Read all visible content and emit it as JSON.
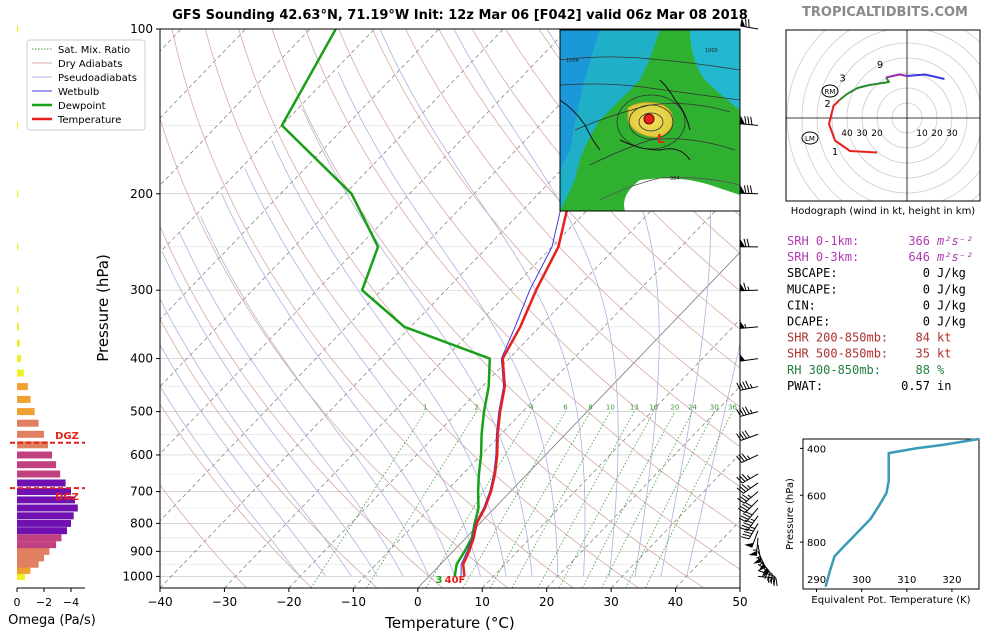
{
  "header": {
    "title": "GFS Sounding 42.63°N, 71.19°W Init: 12z Mar 06 [F042] valid 06z Mar 08 2018",
    "brand": "TROPICALTIDBITS.COM"
  },
  "colors": {
    "temperature": "#e8201a",
    "dewpoint": "#18a018",
    "wetbulb": "#3a3ae0",
    "dry_adiabat": "#d8a8a8",
    "pseudoadiabat": "#b0b0e0",
    "mixing_ratio": "#3a9a3a",
    "purple_index": "#b03ab0",
    "red_index": "#b03030",
    "green_index": "#208040",
    "hodo_green": "#2a8a2a",
    "hodo_purple": "#9a30b0",
    "hodo_blue": "#3a3ae0",
    "theta_e_line": "#3a9ab8",
    "dgz": "#e8201a",
    "omega_colors": [
      "#f0f020",
      "#f0a030",
      "#e08060",
      "#c04080",
      "#7010b0"
    ]
  },
  "chart_data": [
    {
      "id": "skewt",
      "type": "line",
      "title": "GFS Sounding 42.63°N, 71.19°W Init: 12z Mar 06 [F042] valid 06z Mar 08 2018",
      "xlabel": "Temperature (°C)",
      "ylabel": "Pressure (hPa)",
      "xlim": [
        -40,
        50
      ],
      "ylim": [
        1050,
        100
      ],
      "y_scale": "log",
      "x_ticks": [
        -40,
        -30,
        -20,
        -10,
        0,
        10,
        20,
        30,
        40,
        50
      ],
      "x_tick_labels": [
        "−40",
        "−30",
        "−20",
        "−10",
        "0",
        "10",
        "20",
        "30",
        "40",
        "50"
      ],
      "y_ticks": [
        1000,
        900,
        800,
        700,
        600,
        500,
        400,
        300,
        200,
        100
      ],
      "y_tick_labels": [
        "1000",
        "900",
        "800",
        "700",
        "600",
        "500",
        "400",
        "300",
        "200",
        "100"
      ],
      "mixing_ratio_labels": [
        "1",
        "2",
        "4",
        "6",
        "8",
        "10",
        "13",
        "16",
        "20",
        "24",
        "30",
        "36"
      ],
      "legend": {
        "position": "top-left",
        "entries": [
          "Sat. Mix. Ratio",
          "Dry Adiabats",
          "Pseudoadiabats",
          "Wetbulb",
          "Dewpoint",
          "Temperature"
        ]
      },
      "surface_labels": {
        "dewpoint": "3",
        "temperature": "40F"
      },
      "series": [
        {
          "name": "Temperature",
          "points": [
            [
              5.5,
              1000
            ],
            [
              3.5,
              950
            ],
            [
              2.5,
              900
            ],
            [
              1.2,
              850
            ],
            [
              -0.5,
              800
            ],
            [
              -1.5,
              750
            ],
            [
              -3,
              700
            ],
            [
              -5,
              650
            ],
            [
              -7.5,
              600
            ],
            [
              -10.5,
              550
            ],
            [
              -13.5,
              500
            ],
            [
              -16.5,
              450
            ],
            [
              -21,
              400
            ],
            [
              -23,
              350
            ],
            [
              -26,
              300
            ],
            [
              -29,
              250
            ],
            [
              -35,
              200
            ],
            [
              -41,
              150
            ],
            [
              -45,
              100
            ]
          ]
        },
        {
          "name": "Wetbulb",
          "points": [
            [
              5,
              1000
            ],
            [
              3.2,
              950
            ],
            [
              2.2,
              900
            ],
            [
              1,
              850
            ],
            [
              -0.7,
              800
            ],
            [
              -1.7,
              750
            ],
            [
              -3.2,
              700
            ],
            [
              -5.2,
              650
            ],
            [
              -7.7,
              600
            ],
            [
              -10.7,
              550
            ],
            [
              -13.7,
              500
            ],
            [
              -16.7,
              450
            ],
            [
              -21.2,
              400
            ],
            [
              -23.8,
              350
            ],
            [
              -27,
              300
            ],
            [
              -30,
              250
            ],
            [
              -36,
              200
            ],
            [
              -42,
              150
            ],
            [
              -46.5,
              100
            ]
          ]
        },
        {
          "name": "Dewpoint",
          "points": [
            [
              4,
              1000
            ],
            [
              2.5,
              950
            ],
            [
              1.8,
              900
            ],
            [
              0.9,
              850
            ],
            [
              -0.8,
              800
            ],
            [
              -2.5,
              750
            ],
            [
              -5,
              700
            ],
            [
              -7.5,
              650
            ],
            [
              -10,
              600
            ],
            [
              -13,
              550
            ],
            [
              -16,
              500
            ],
            [
              -19,
              450
            ],
            [
              -23,
              400
            ],
            [
              -41,
              350
            ],
            [
              -53,
              300
            ],
            [
              -57,
              250
            ],
            [
              -69,
              200
            ],
            [
              -90,
              150
            ],
            [
              -96,
              100
            ]
          ]
        }
      ]
    },
    {
      "id": "omega",
      "type": "bar",
      "xlabel": "Omega (Pa/s)",
      "xlim": [
        0,
        -5
      ],
      "x_ticks": [
        0,
        -2,
        -4
      ],
      "x_tick_labels": [
        "0",
        "−2",
        "−4"
      ],
      "dgz_label": "DGZ",
      "dgz_pressures": [
        570,
        690
      ],
      "levels": [
        1000,
        975,
        950,
        925,
        900,
        875,
        850,
        825,
        800,
        775,
        750,
        725,
        700,
        675,
        650,
        625,
        600,
        575,
        550,
        525,
        500,
        475,
        450,
        425,
        400,
        375,
        350,
        325,
        300,
        250,
        200,
        150,
        100
      ],
      "values": [
        -0.6,
        -1.0,
        -1.6,
        -2.0,
        -2.4,
        -2.9,
        -3.3,
        -3.7,
        -4.0,
        -4.2,
        -4.5,
        -4.3,
        -4.0,
        -3.6,
        -3.2,
        -2.9,
        -2.6,
        -2.3,
        -2.0,
        -1.6,
        -1.3,
        -1.0,
        -0.8,
        -0.5,
        -0.3,
        -0.2,
        -0.15,
        -0.1,
        -0.1,
        -0.08,
        -0.06,
        -0.05,
        -0.04
      ]
    },
    {
      "id": "hodograph",
      "type": "line",
      "xlabel": "Hodograph (wind in kt, height in km)",
      "ring_labels_left": [
        "40",
        "30",
        "20"
      ],
      "ring_labels_right": [
        "10",
        "20",
        "30"
      ],
      "height_labels": [
        "1",
        "2",
        "3",
        "9"
      ],
      "markers": [
        "RM",
        "LM"
      ],
      "segments": [
        {
          "color": "red",
          "points": [
            [
              -20,
              -23
            ],
            [
              -38,
              -22
            ],
            [
              -48,
              -15
            ],
            [
              -52,
              -4
            ],
            [
              -49,
              8
            ],
            [
              -45,
              12
            ]
          ]
        },
        {
          "color": "green",
          "points": [
            [
              -45,
              12
            ],
            [
              -40,
              16
            ],
            [
              -33,
              20
            ],
            [
              -25,
              22
            ],
            [
              -12,
              24
            ],
            [
              -14,
              27
            ]
          ]
        },
        {
          "color": "purple",
          "points": [
            [
              -14,
              27
            ],
            [
              -5,
              29
            ],
            [
              0,
              28
            ]
          ]
        },
        {
          "color": "blue",
          "points": [
            [
              0,
              28
            ],
            [
              12,
              29
            ],
            [
              25,
              26
            ]
          ]
        }
      ]
    },
    {
      "id": "theta_e",
      "type": "line",
      "xlabel": "Equivalent Pot. Temperature (K)",
      "ylabel": "Pressure (hPa)",
      "xlim": [
        287,
        326
      ],
      "ylim": [
        1000,
        360
      ],
      "x_ticks": [
        290,
        300,
        310,
        320
      ],
      "y_ticks": [
        400,
        600,
        800
      ],
      "points": [
        [
          292,
          990
        ],
        [
          293,
          920
        ],
        [
          294,
          860
        ],
        [
          296,
          820
        ],
        [
          299,
          760
        ],
        [
          302,
          700
        ],
        [
          304,
          640
        ],
        [
          305.5,
          590
        ],
        [
          306,
          540
        ],
        [
          306,
          480
        ],
        [
          306,
          420
        ],
        [
          312,
          400
        ],
        [
          318,
          385
        ],
        [
          326,
          360
        ]
      ]
    }
  ],
  "indices": [
    {
      "label": "SRH 0-1km:",
      "value": "366",
      "unit": "m²s⁻²",
      "color": "purple_index"
    },
    {
      "label": "SRH 0-3km:",
      "value": "646",
      "unit": "m²s⁻²",
      "color": "purple_index"
    },
    {
      "label": "SBCAPE:",
      "value": "0",
      "unit": "J/kg",
      "color": "black"
    },
    {
      "label": "MUCAPE:",
      "value": "0",
      "unit": "J/kg",
      "color": "black"
    },
    {
      "label": "CIN:",
      "value": "0",
      "unit": "J/kg",
      "color": "black"
    },
    {
      "label": "DCAPE:",
      "value": "0",
      "unit": "J/kg",
      "color": "black"
    },
    {
      "label": "SHR 200-850mb:",
      "value": "84",
      "unit": "kt",
      "color": "red_index"
    },
    {
      "label": "SHR 500-850mb:",
      "value": "35",
      "unit": "kt",
      "color": "red_index"
    },
    {
      "label": "RH 300-850mb:",
      "value": "88",
      "unit": "%",
      "color": "green_index"
    },
    {
      "label": "PWAT:",
      "value": "0.57",
      "unit": "in",
      "color": "black"
    }
  ],
  "map_inset": {
    "low_label": "L",
    "contour_labels": [
      "1004",
      "1000",
      "996",
      "992",
      "988",
      "984"
    ]
  },
  "wind_barbs": {
    "pressures": [
      1000,
      975,
      950,
      925,
      900,
      875,
      850,
      825,
      800,
      775,
      750,
      725,
      700,
      675,
      650,
      600,
      550,
      500,
      450,
      400,
      350,
      300,
      250,
      200,
      150,
      100
    ],
    "speeds_kt": [
      20,
      30,
      40,
      50,
      55,
      55,
      55,
      50,
      45,
      45,
      40,
      40,
      35,
      35,
      35,
      35,
      40,
      45,
      45,
      50,
      55,
      65,
      70,
      80,
      80,
      70
    ],
    "directions_deg": [
      95,
      110,
      125,
      140,
      155,
      170,
      185,
      200,
      210,
      215,
      220,
      225,
      230,
      235,
      240,
      245,
      250,
      255,
      258,
      262,
      265,
      268,
      270,
      272,
      275,
      280
    ]
  }
}
